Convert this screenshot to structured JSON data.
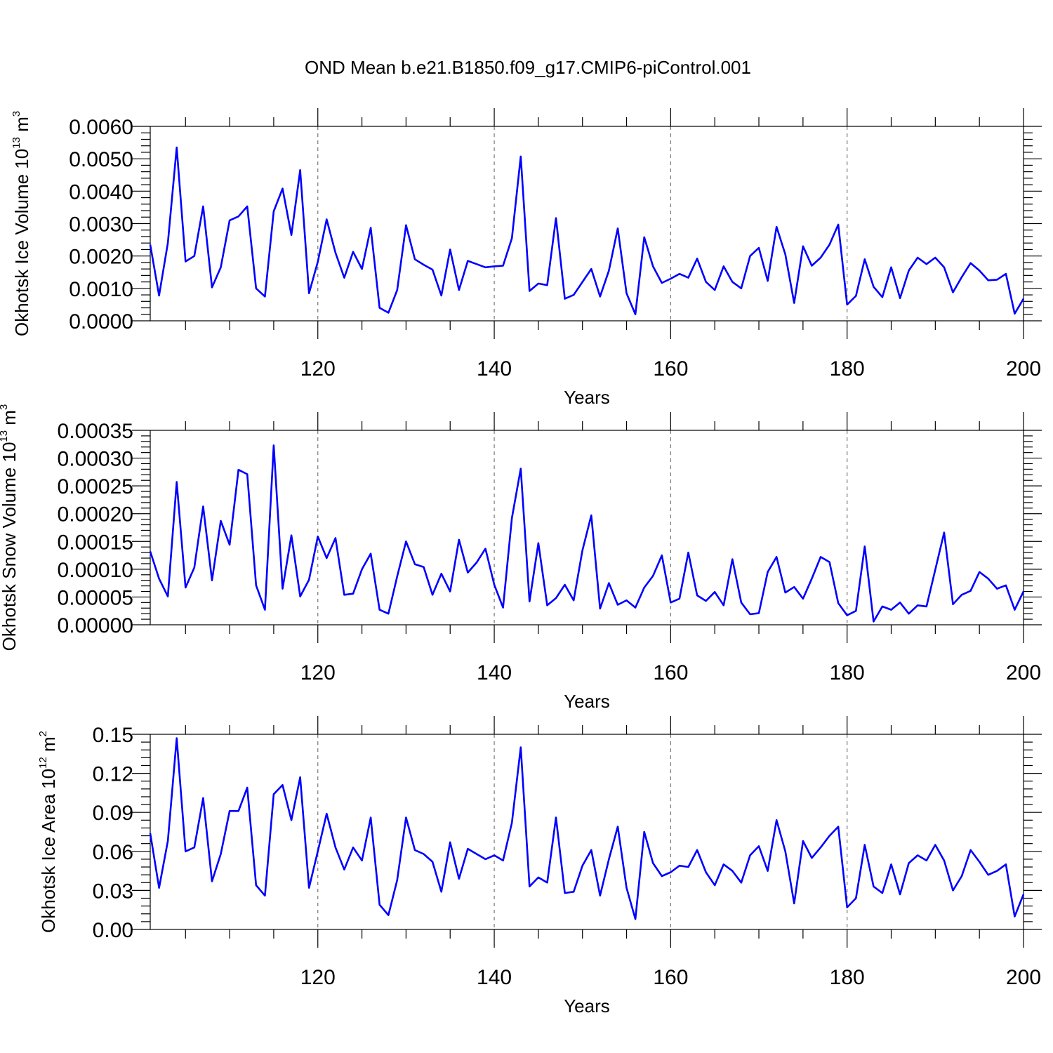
{
  "title": "OND Mean b.e21.B1850.f09_g17.CMIP6-piControl.001",
  "colors": {
    "line": "#0000ff",
    "grid": "#777777"
  },
  "chart_data": [
    {
      "type": "line",
      "xlabel": "Years",
      "ylabel": {
        "main": "Okhotsk Ice Volume 10",
        "exp": "13",
        "unit": " m",
        "unit_exp": "3"
      },
      "xlim": [
        101,
        200
      ],
      "xticks": [
        120,
        140,
        160,
        180,
        200
      ],
      "grid_x": [
        120,
        140,
        160,
        180
      ],
      "ylim": [
        0,
        0.006
      ],
      "yticks": [
        "0.0000",
        "0.0010",
        "0.0020",
        "0.0030",
        "0.0040",
        "0.0050",
        "0.0060"
      ],
      "x_start": 101,
      "values": [
        0.00235,
        0.00078,
        0.0024,
        0.00535,
        0.00183,
        0.002,
        0.00353,
        0.00103,
        0.00165,
        0.0031,
        0.00322,
        0.00353,
        0.001,
        0.00075,
        0.00338,
        0.00408,
        0.00265,
        0.00465,
        0.00085,
        0.00182,
        0.00313,
        0.0021,
        0.00133,
        0.00213,
        0.0016,
        0.00287,
        0.0004,
        0.00025,
        0.00095,
        0.00295,
        0.0019,
        0.00173,
        0.00158,
        0.00078,
        0.0022,
        0.00095,
        0.00185,
        0.00175,
        0.00165,
        0.00168,
        0.0017,
        0.00255,
        0.00507,
        0.00092,
        0.00115,
        0.0011,
        0.00317,
        0.00068,
        0.0008,
        0.0012,
        0.0016,
        0.00075,
        0.00155,
        0.00285,
        0.00085,
        0.0002,
        0.00258,
        0.00168,
        0.00117,
        0.0013,
        0.00145,
        0.00133,
        0.00192,
        0.0012,
        0.00095,
        0.00168,
        0.0012,
        0.001,
        0.002,
        0.00225,
        0.00123,
        0.0029,
        0.00205,
        0.00055,
        0.0023,
        0.0017,
        0.00195,
        0.00235,
        0.00297,
        0.0005,
        0.00077,
        0.0019,
        0.00105,
        0.00073,
        0.00165,
        0.0007,
        0.00155,
        0.00195,
        0.00175,
        0.00195,
        0.00165,
        0.00088,
        0.00135,
        0.00178,
        0.00155,
        0.00125,
        0.00127,
        0.00145,
        0.00022,
        0.00068
      ]
    },
    {
      "type": "line",
      "xlabel": "Years",
      "ylabel": {
        "main": "Okhotsk Snow Volume 10",
        "exp": "13",
        "unit": " m",
        "unit_exp": "3"
      },
      "xlim": [
        101,
        200
      ],
      "xticks": [
        120,
        140,
        160,
        180,
        200
      ],
      "grid_x": [
        120,
        140,
        160,
        180
      ],
      "ylim": [
        0,
        0.00035
      ],
      "yticks": [
        "0.00000",
        "0.00005",
        "0.00010",
        "0.00015",
        "0.00020",
        "0.00025",
        "0.00030",
        "0.00035"
      ],
      "x_start": 101,
      "values": [
        0.000132,
        8.3e-05,
        5.1e-05,
        0.000257,
        6.7e-05,
        0.000103,
        0.000213,
        8e-05,
        0.000187,
        0.000144,
        0.000279,
        0.000271,
        7.1e-05,
        2.7e-05,
        0.000323,
        6.5e-05,
        0.000161,
        5.1e-05,
        8.1e-05,
        0.000159,
        0.00012,
        0.000156,
        5.4e-05,
        5.6e-05,
        0.0001,
        0.000128,
        2.7e-05,
        2e-05,
        8.7e-05,
        0.00015,
        0.000109,
        0.000104,
        5.4e-05,
        9.2e-05,
        6e-05,
        0.000153,
        9.4e-05,
        0.000112,
        0.000137,
        7.2e-05,
        3.1e-05,
        0.000192,
        0.000281,
        4.2e-05,
        0.000147,
        3.5e-05,
        4.8e-05,
        7.2e-05,
        4.4e-05,
        0.000134,
        0.000197,
        2.9e-05,
        7.5e-05,
        3.6e-05,
        4.4e-05,
        3.1e-05,
        6.7e-05,
        8.8e-05,
        0.000125,
        4e-05,
        4.7e-05,
        0.00013,
        5.3e-05,
        4.3e-05,
        5.9e-05,
        3.5e-05,
        0.000118,
        4e-05,
        1.9e-05,
        2.1e-05,
        9.5e-05,
        0.000122,
        5.8e-05,
        6.8e-05,
        4.7e-05,
        8.3e-05,
        0.000122,
        0.000113,
        3.9e-05,
        1.7e-05,
        2.5e-05,
        0.000141,
        6e-06,
        3.3e-05,
        2.7e-05,
        4e-05,
        2e-05,
        3.5e-05,
        3.3e-05,
        9.9e-05,
        0.000166,
        3.7e-05,
        5.4e-05,
        6.1e-05,
        9.5e-05,
        8.3e-05,
        6.5e-05,
        7.1e-05,
        2.7e-05,
        6e-05
      ]
    },
    {
      "type": "line",
      "xlabel": "Years",
      "ylabel": {
        "main": "Okhotsk Ice Area 10",
        "exp": "12",
        "unit": " m",
        "unit_exp": "2"
      },
      "xlim": [
        101,
        200
      ],
      "xticks": [
        120,
        140,
        160,
        180,
        200
      ],
      "grid_x": [
        120,
        140,
        160,
        180
      ],
      "ylim": [
        0,
        0.15
      ],
      "yticks": [
        "0.00",
        "0.03",
        "0.06",
        "0.09",
        "0.12",
        "0.15"
      ],
      "x_start": 101,
      "values": [
        0.074,
        0.032,
        0.068,
        0.147,
        0.06,
        0.063,
        0.101,
        0.037,
        0.058,
        0.091,
        0.091,
        0.109,
        0.034,
        0.026,
        0.104,
        0.111,
        0.084,
        0.117,
        0.032,
        0.06,
        0.089,
        0.063,
        0.046,
        0.063,
        0.053,
        0.086,
        0.019,
        0.011,
        0.038,
        0.086,
        0.061,
        0.058,
        0.052,
        0.029,
        0.067,
        0.039,
        0.062,
        0.058,
        0.054,
        0.057,
        0.053,
        0.082,
        0.14,
        0.033,
        0.04,
        0.036,
        0.086,
        0.028,
        0.029,
        0.049,
        0.061,
        0.026,
        0.054,
        0.079,
        0.032,
        0.008,
        0.075,
        0.051,
        0.041,
        0.044,
        0.049,
        0.048,
        0.061,
        0.044,
        0.034,
        0.05,
        0.045,
        0.036,
        0.057,
        0.064,
        0.045,
        0.084,
        0.06,
        0.02,
        0.068,
        0.055,
        0.063,
        0.072,
        0.079,
        0.017,
        0.024,
        0.065,
        0.033,
        0.028,
        0.05,
        0.027,
        0.051,
        0.057,
        0.053,
        0.065,
        0.053,
        0.03,
        0.041,
        0.061,
        0.052,
        0.042,
        0.045,
        0.05,
        0.01,
        0.027
      ]
    }
  ]
}
